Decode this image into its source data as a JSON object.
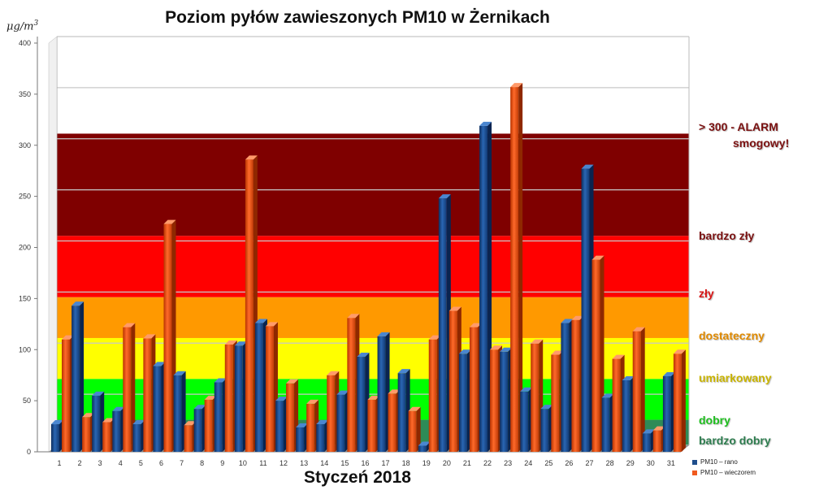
{
  "chart_data": {
    "type": "bar",
    "title": "Poziom pyłów zawieszonych PM10 w Żernikach",
    "xlabel": "Styczeń 2018",
    "ylabel_base": "μg/m",
    "ylabel_exp": "3",
    "ylim": [
      0,
      400
    ],
    "yticks": [
      0,
      50,
      100,
      150,
      200,
      250,
      300,
      350,
      400
    ],
    "grid": true,
    "legend_position": "bottom-right",
    "categories": [
      "1",
      "2",
      "3",
      "4",
      "5",
      "6",
      "7",
      "8",
      "9",
      "10",
      "11",
      "12",
      "13",
      "14",
      "15",
      "16",
      "17",
      "18",
      "19",
      "20",
      "21",
      "22",
      "23",
      "24",
      "25",
      "26",
      "27",
      "28",
      "29",
      "30",
      "31"
    ],
    "series": [
      {
        "name": "PM10 – rano",
        "color": "#1f4e8c",
        "values": [
          27,
          143,
          55,
          40,
          27,
          84,
          75,
          42,
          68,
          104,
          126,
          50,
          24,
          27,
          56,
          93,
          113,
          77,
          6,
          248,
          96,
          319,
          98,
          59,
          42,
          126,
          277,
          53,
          70,
          18,
          74
        ]
      },
      {
        "name": "PM10 – wieczorem",
        "color": "#f05a1e",
        "values": [
          110,
          34,
          29,
          122,
          111,
          223,
          26,
          51,
          105,
          286,
          123,
          67,
          47,
          75,
          131,
          51,
          57,
          40,
          110,
          138,
          122,
          100,
          357,
          106,
          95,
          129,
          188,
          91,
          118,
          21,
          96
        ]
      }
    ],
    "zones": [
      {
        "label": "bardzo dobry",
        "from": 0,
        "to": 25,
        "color": "#2e8b57",
        "text_color": "#2e7d4f"
      },
      {
        "label": "dobry",
        "from": 25,
        "to": 65,
        "color": "#00ff00",
        "text_color": "#1fbf1f"
      },
      {
        "label": "umiarkowany",
        "from": 65,
        "to": 105,
        "color": "#ffff00",
        "text_color": "#c9b400"
      },
      {
        "label": "dostateczny",
        "from": 105,
        "to": 145,
        "color": "#ff9900",
        "text_color": "#e08a00"
      },
      {
        "label": "zły",
        "from": 145,
        "to": 205,
        "color": "#ff0000",
        "text_color": "#d81616"
      },
      {
        "label": "bardzo zły",
        "from": 205,
        "to": 305,
        "color": "#7f0000",
        "text_color": "#7a1010"
      }
    ],
    "alarm_label_line1": "> 300 - ALARM",
    "alarm_label_line2": "smogowy!",
    "alarm_text_color": "#7a1010"
  }
}
